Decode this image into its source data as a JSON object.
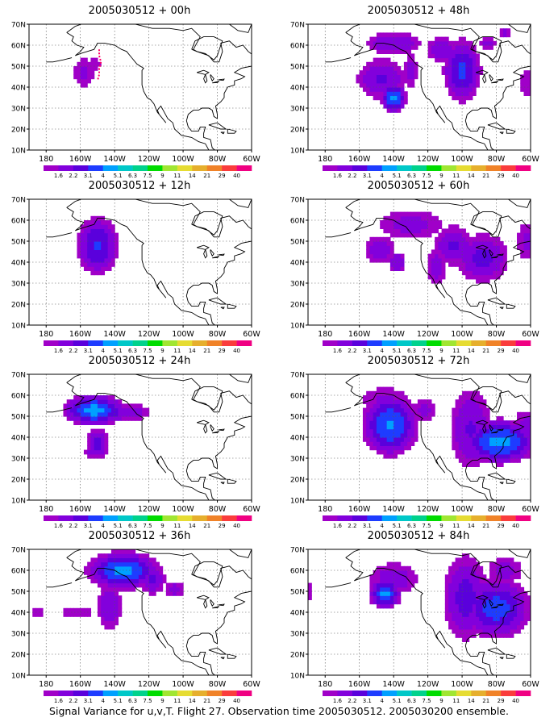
{
  "chart_data": {
    "type": "contour_map",
    "units": "signal variance",
    "levels": [
      1.6,
      2.2,
      3.1,
      4,
      5.1,
      6.3,
      7.5,
      9,
      11,
      14,
      21,
      29,
      40
    ],
    "level_labels": [
      "1.6",
      "2.2",
      "3.1",
      "4",
      "5.1",
      "6.3",
      "7.5",
      "9",
      "11",
      "14",
      "21",
      "29",
      "40"
    ],
    "palette": [
      "#a000c8",
      "#8200dc",
      "#5a00dc",
      "#1e3cff",
      "#00a0ff",
      "#00c8c8",
      "#00d28c",
      "#00dc00",
      "#a0e632",
      "#e6dc32",
      "#e6af2d",
      "#f08228",
      "#fa3c3c",
      "#f00082"
    ],
    "lat_ticks": [
      "10N",
      "20N",
      "30N",
      "40N",
      "50N",
      "60N",
      "70N"
    ],
    "lon_ticks": [
      "180",
      "160W",
      "140W",
      "120W",
      "100W",
      "80W",
      "60W"
    ],
    "panels": [
      {
        "title": "2005030512 + 00h"
      },
      {
        "title": "2005030512 + 12h"
      },
      {
        "title": "2005030512 + 24h"
      },
      {
        "title": "2005030512 + 36h"
      },
      {
        "title": "2005030512 + 48h"
      },
      {
        "title": "2005030512 + 60h"
      },
      {
        "title": "2005030512 + 72h"
      },
      {
        "title": "2005030512 + 84h"
      }
    ],
    "caption": "Signal Variance for u,v,T. Flight 27. Observation time 2005030512. 2005030200 ensemble."
  }
}
